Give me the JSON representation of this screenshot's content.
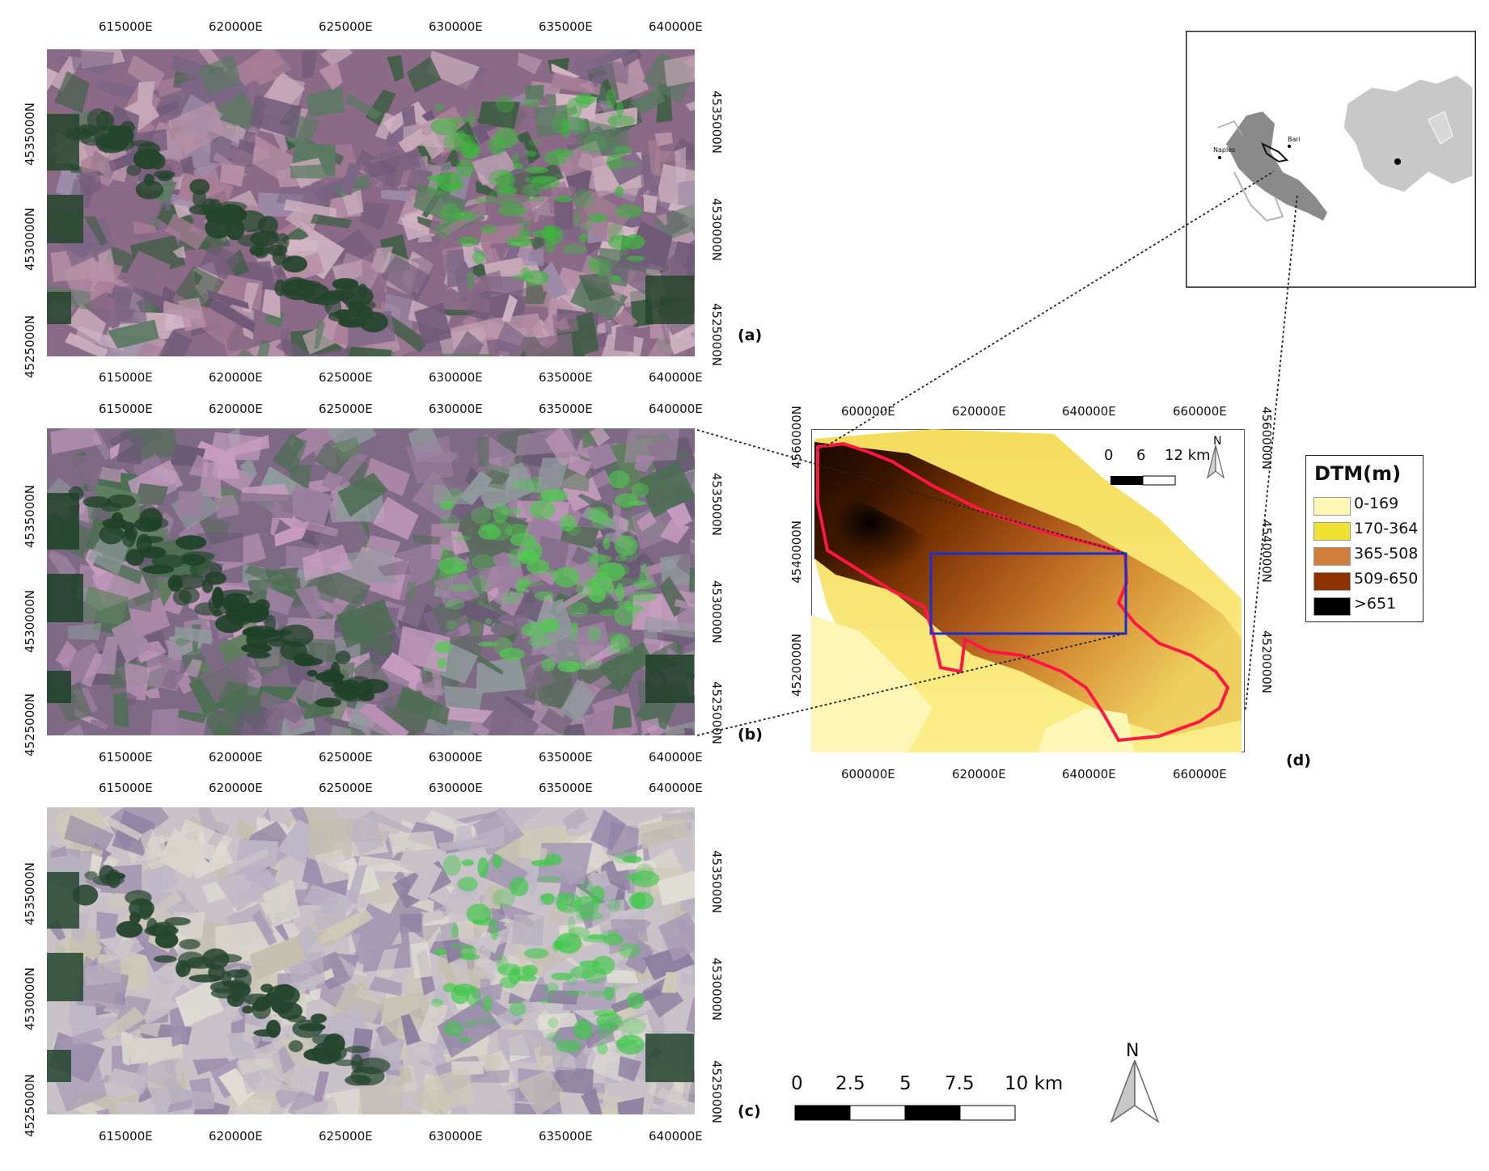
{
  "panels": {
    "a": {
      "label": "(a)",
      "x_ticks": [
        "615000E",
        "620000E",
        "625000E",
        "630000E",
        "635000E",
        "640000E"
      ],
      "y_ticks": [
        "4535000N",
        "4530000N",
        "4525000N"
      ],
      "palette": [
        "#8a6a86",
        "#b892a8",
        "#6f5a78",
        "#9c8caa",
        "#5b7a62",
        "#c7a9b8",
        "#7c6686",
        "#3f5e45",
        "#a87e96",
        "#d2b6c4"
      ],
      "accent": "#3fb53f",
      "forest": "#24452c"
    },
    "b": {
      "label": "(b)",
      "x_ticks": [
        "615000E",
        "620000E",
        "625000E",
        "630000E",
        "635000E",
        "640000E"
      ],
      "y_ticks": [
        "4535000N",
        "4530000N",
        "4525000N"
      ],
      "palette": [
        "#7e6a84",
        "#a58aa6",
        "#5c6b60",
        "#8f9a9c",
        "#b78fb2",
        "#6a5a76",
        "#4c6e52",
        "#c79dc0",
        "#9c7fa0",
        "#60805f"
      ],
      "accent": "#4fcc4f",
      "forest": "#1f4128"
    },
    "c": {
      "label": "(c)",
      "x_ticks": [
        "615000E",
        "620000E",
        "625000E",
        "630000E",
        "635000E",
        "640000E"
      ],
      "y_ticks": [
        "4535000N",
        "4530000N",
        "4525000N"
      ],
      "palette": [
        "#c9c2c8",
        "#b7b0bf",
        "#d8d4cc",
        "#a79ab4",
        "#9d8fae",
        "#c4bfae",
        "#e0ddd4",
        "#8c7ea0",
        "#bdb6c6",
        "#cfcab8"
      ],
      "accent": "#3fc94a",
      "forest": "#25452e"
    },
    "d": {
      "label": "(d)",
      "x_ticks": [
        "600000E",
        "620000E",
        "640000E",
        "660000E"
      ],
      "y_ticks": [
        "4560000N",
        "4540000N",
        "4520000N"
      ],
      "scale": {
        "labels": [
          "0",
          "6",
          "12 km"
        ]
      },
      "north": "N"
    }
  },
  "legend": {
    "title": "DTM(m)",
    "classes": [
      {
        "label": "0-169",
        "color": "#fdf6b4"
      },
      {
        "label": "170-364",
        "color": "#f0e233"
      },
      {
        "label": "365-508",
        "color": "#d07d3a"
      },
      {
        "label": "509-650",
        "color": "#8e3000"
      },
      {
        "label": ">651",
        "color": "#000000"
      }
    ]
  },
  "locator": {
    "city_labels": [
      "Naples",
      "Bari"
    ]
  },
  "main_scale": {
    "labels": [
      "0",
      "2.5",
      "5",
      "7.5",
      "10 km"
    ],
    "north": "N"
  },
  "colors": {
    "outline": "#ff1744",
    "extent_box": "#1a2fd0",
    "region_grey": "#8a8a8a",
    "europe_grey": "#c8c8c8"
  }
}
